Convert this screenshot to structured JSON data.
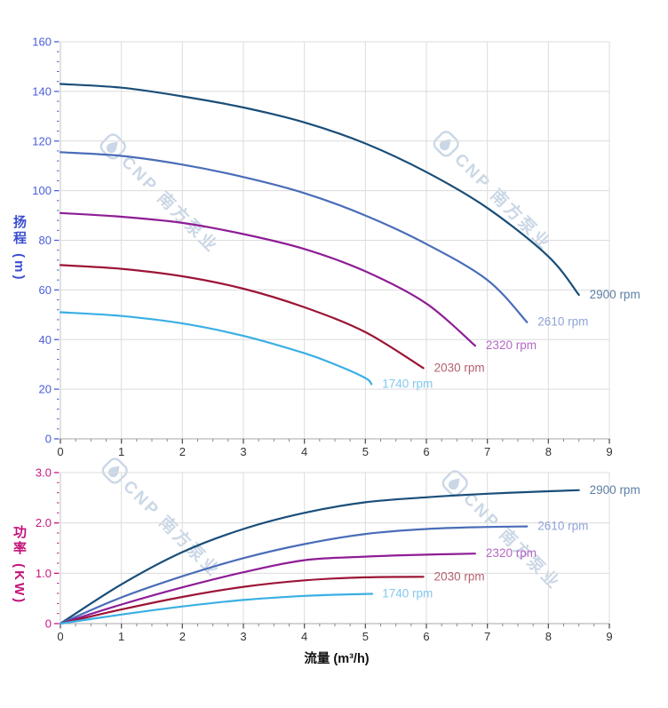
{
  "watermark": {
    "text": "CNP 南方泵业"
  },
  "styles": {
    "grid_color": "#dcdcdc",
    "spine_color": "#c6c6c6",
    "x_tick_color": "#555555",
    "x_label_color": "#333333",
    "head_axis_color": "#3a4ecf",
    "head_tick_label_color": "#4a5ed9",
    "power_axis_color": "#c3117a",
    "power_tick_label_color": "#c9177e",
    "series": [
      {
        "name": "2900 rpm",
        "color": "#1a4e79",
        "label_color": "#5d7fa3"
      },
      {
        "name": "2610 rpm",
        "color": "#4a6db8",
        "label_color": "#8fa3d8"
      },
      {
        "name": "2320 rpm",
        "color": "#8e1d96",
        "label_color": "#b469c4"
      },
      {
        "name": "2030 rpm",
        "color": "#9c1536",
        "label_color": "#b4616e"
      },
      {
        "name": "1740 rpm",
        "color": "#3aafe4",
        "label_color": "#82c8ee"
      }
    ]
  },
  "chart_data": [
    {
      "type": "line",
      "title": "",
      "xlabel": "流量 (m³/h)",
      "ylabel": "扬程 (m)",
      "xlim": [
        0,
        9
      ],
      "ylim": [
        0,
        160
      ],
      "x_ticks": [
        "0",
        "1",
        "2",
        "3",
        "4",
        "5",
        "6",
        "7",
        "8",
        "9"
      ],
      "y_ticks": [
        "0",
        "20",
        "40",
        "60",
        "80",
        "100",
        "120",
        "140",
        "160"
      ],
      "grid": true,
      "legend": "inline-curve-labels",
      "series": [
        {
          "name": "2900 rpm",
          "x": [
            0,
            1,
            2,
            3,
            4,
            5,
            6,
            7,
            8,
            8.5
          ],
          "y": [
            143,
            141.5,
            138,
            133.5,
            127.5,
            119,
            107.5,
            93,
            73.5,
            58
          ]
        },
        {
          "name": "2610 rpm",
          "x": [
            0,
            1,
            2,
            3,
            4,
            5,
            6,
            7,
            7.65
          ],
          "y": [
            115.5,
            114,
            110.5,
            105.5,
            99,
            90,
            78.5,
            64,
            47
          ]
        },
        {
          "name": "2320 rpm",
          "x": [
            0,
            1,
            2,
            3,
            4,
            5,
            6,
            6.8
          ],
          "y": [
            91,
            89.5,
            87,
            82.5,
            76.5,
            67.5,
            54.5,
            37.5
          ]
        },
        {
          "name": "2030 rpm",
          "x": [
            0,
            1,
            2,
            3,
            4,
            5,
            5.95
          ],
          "y": [
            70,
            68.5,
            65.5,
            60.5,
            53,
            43,
            28.5
          ]
        },
        {
          "name": "1740 rpm",
          "x": [
            0,
            1,
            2,
            3,
            4,
            4.5,
            5,
            5.1
          ],
          "y": [
            51,
            49.5,
            46.5,
            41.5,
            34.5,
            30,
            24.5,
            22
          ]
        }
      ]
    },
    {
      "type": "line",
      "title": "",
      "xlabel": "流量 (m³/h)",
      "ylabel": "功率 (KW)",
      "xlim": [
        0,
        9
      ],
      "ylim": [
        0,
        3
      ],
      "x_ticks": [
        "0",
        "1",
        "2",
        "3",
        "4",
        "5",
        "6",
        "7",
        "8",
        "9"
      ],
      "y_ticks": [
        "0",
        "1.0",
        "2.0",
        "3.0"
      ],
      "grid": true,
      "legend": "inline-curve-labels",
      "series": [
        {
          "name": "2900 rpm",
          "x": [
            0,
            1,
            2,
            3,
            4,
            5,
            6,
            7,
            8,
            8.5
          ],
          "y": [
            0,
            0.78,
            1.42,
            1.88,
            2.2,
            2.41,
            2.51,
            2.58,
            2.63,
            2.65
          ]
        },
        {
          "name": "2610 rpm",
          "x": [
            0,
            1,
            2,
            3,
            4,
            5,
            6,
            7,
            7.65
          ],
          "y": [
            0,
            0.52,
            0.94,
            1.3,
            1.58,
            1.78,
            1.88,
            1.92,
            1.93
          ]
        },
        {
          "name": "2320 rpm",
          "x": [
            0,
            1,
            2,
            3,
            4,
            5,
            6,
            6.8
          ],
          "y": [
            0,
            0.38,
            0.72,
            1.02,
            1.26,
            1.33,
            1.37,
            1.39
          ]
        },
        {
          "name": "2030 rpm",
          "x": [
            0,
            1,
            2,
            3,
            4,
            5,
            5.95
          ],
          "y": [
            0,
            0.28,
            0.53,
            0.73,
            0.86,
            0.92,
            0.93
          ]
        },
        {
          "name": "1740 rpm",
          "x": [
            0,
            1,
            2,
            3,
            4,
            5,
            5.1
          ],
          "y": [
            0,
            0.18,
            0.34,
            0.47,
            0.55,
            0.59,
            0.59
          ]
        }
      ]
    }
  ]
}
